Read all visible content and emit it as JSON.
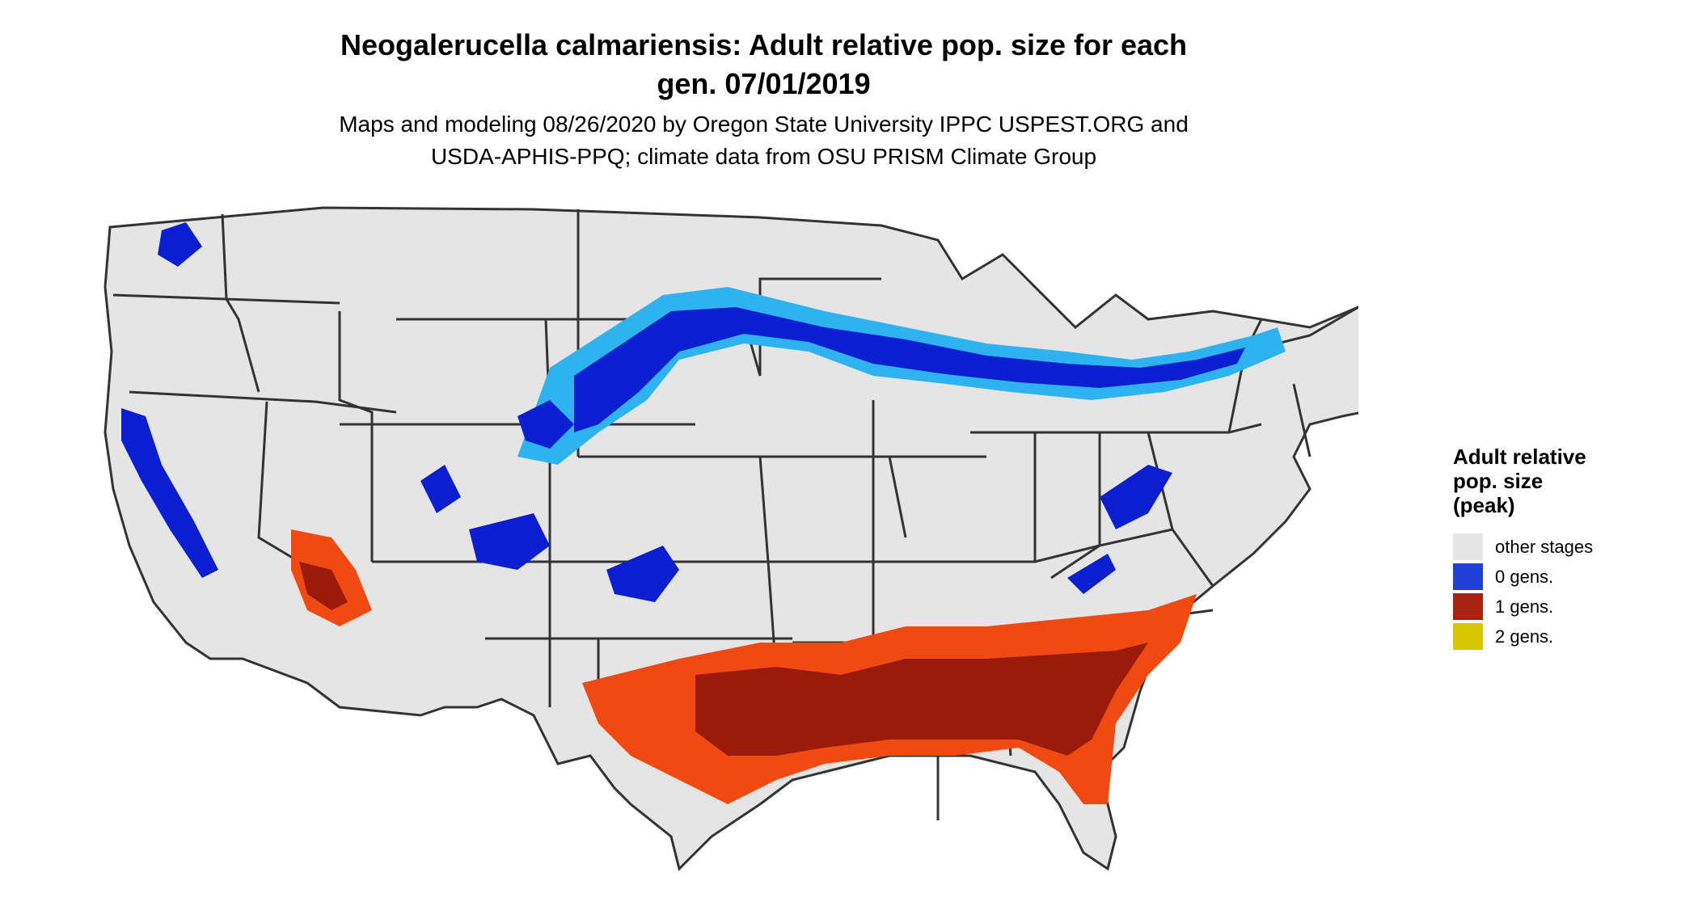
{
  "title_line1": "Neogalerucella calmariensis: Adult relative pop. size for each",
  "title_line2": "gen. 07/01/2019",
  "subtitle_line1": "Maps and modeling 08/26/2020 by Oregon State University IPPC USPEST.ORG and",
  "subtitle_line2": "USDA-APHIS-PPQ; climate data from OSU PRISM Climate Group",
  "legend": {
    "title_lines": [
      "Adult relative",
      "pop. size",
      "(peak)"
    ],
    "items": [
      {
        "label": "other stages",
        "color": "#e5e5e5"
      },
      {
        "label": "0 gens.",
        "color": "#1f3fd6"
      },
      {
        "label": "1 gens.",
        "color": "#a82212"
      },
      {
        "label": "2 gens.",
        "color": "#d9c400"
      }
    ]
  },
  "colors": {
    "land": "#e5e5e5",
    "border": "#333333",
    "zero_gen_dark": "#0a1fcf",
    "zero_gen_light": "#2fb3f0",
    "one_gen_dark": "#9a1a0c",
    "one_gen_light": "#f04a12"
  }
}
